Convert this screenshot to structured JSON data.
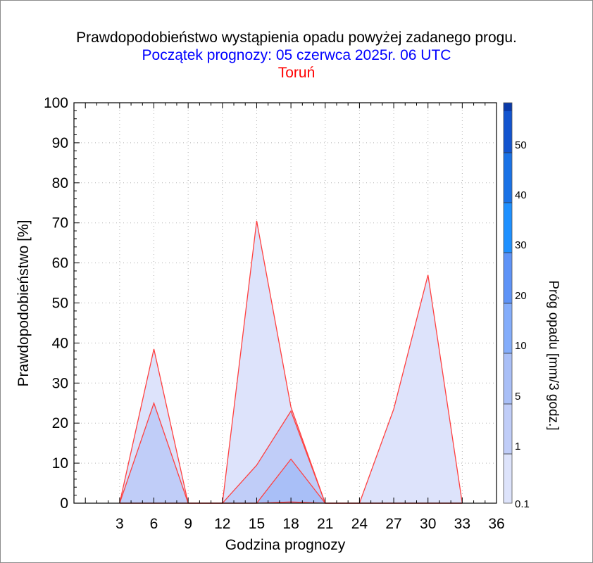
{
  "title": "Prawdopodobieństwo wystąpienia opadu powyżej zadanego progu.",
  "subtitle": "Początek prognozy: 05 czerwca 2025r. 06 UTC",
  "location": "Toruń",
  "colors": {
    "series_line": "#ff4040",
    "title": "#000000",
    "subtitle": "#0000ff",
    "location": "#ff0000",
    "th_0_1": "#dde3fb",
    "th_1": "#c0cdf8",
    "th_5": "#a9bff7",
    "th_10": "#84adfb",
    "th_20": "#5e93f7",
    "th_30": "#1e90ff",
    "th_40": "#1a72e6",
    "th_50": "#1254cf",
    "th_top": "#0a3aa8"
  },
  "chart_data": {
    "type": "area",
    "xlabel": "Godzina prognozy",
    "ylabel": "Prawdopodobieństwo [%]",
    "xlim": [
      -1,
      36
    ],
    "ylim": [
      0,
      100
    ],
    "xticks": [
      3,
      6,
      9,
      12,
      15,
      18,
      21,
      24,
      27,
      30,
      33,
      36
    ],
    "yticks": [
      0,
      10,
      20,
      30,
      40,
      50,
      60,
      70,
      80,
      90,
      100
    ],
    "grid": true,
    "x": [
      3,
      6,
      9,
      12,
      15,
      18,
      21,
      24,
      27,
      30,
      33
    ],
    "series": [
      {
        "threshold": "0.1",
        "values": [
          0,
          38.5,
          0,
          0,
          70.5,
          24,
          0,
          0,
          23.5,
          57,
          0
        ]
      },
      {
        "threshold": "1",
        "values": [
          0,
          25,
          0,
          0,
          9.5,
          23,
          0,
          0,
          0,
          0,
          0
        ]
      },
      {
        "threshold": "5",
        "values": [
          0,
          0,
          0,
          0,
          0,
          11,
          0,
          0,
          0,
          0,
          0
        ]
      },
      {
        "threshold": "10",
        "values": [
          0,
          0,
          0,
          0,
          0,
          0.3,
          0,
          0,
          0,
          0,
          0
        ]
      }
    ],
    "colorbar": {
      "label": "Próg opadu [mm/3 godz.]",
      "tick_labels": [
        "0.1",
        "1",
        "5",
        "10",
        "20",
        "30",
        "40",
        "50"
      ]
    }
  }
}
